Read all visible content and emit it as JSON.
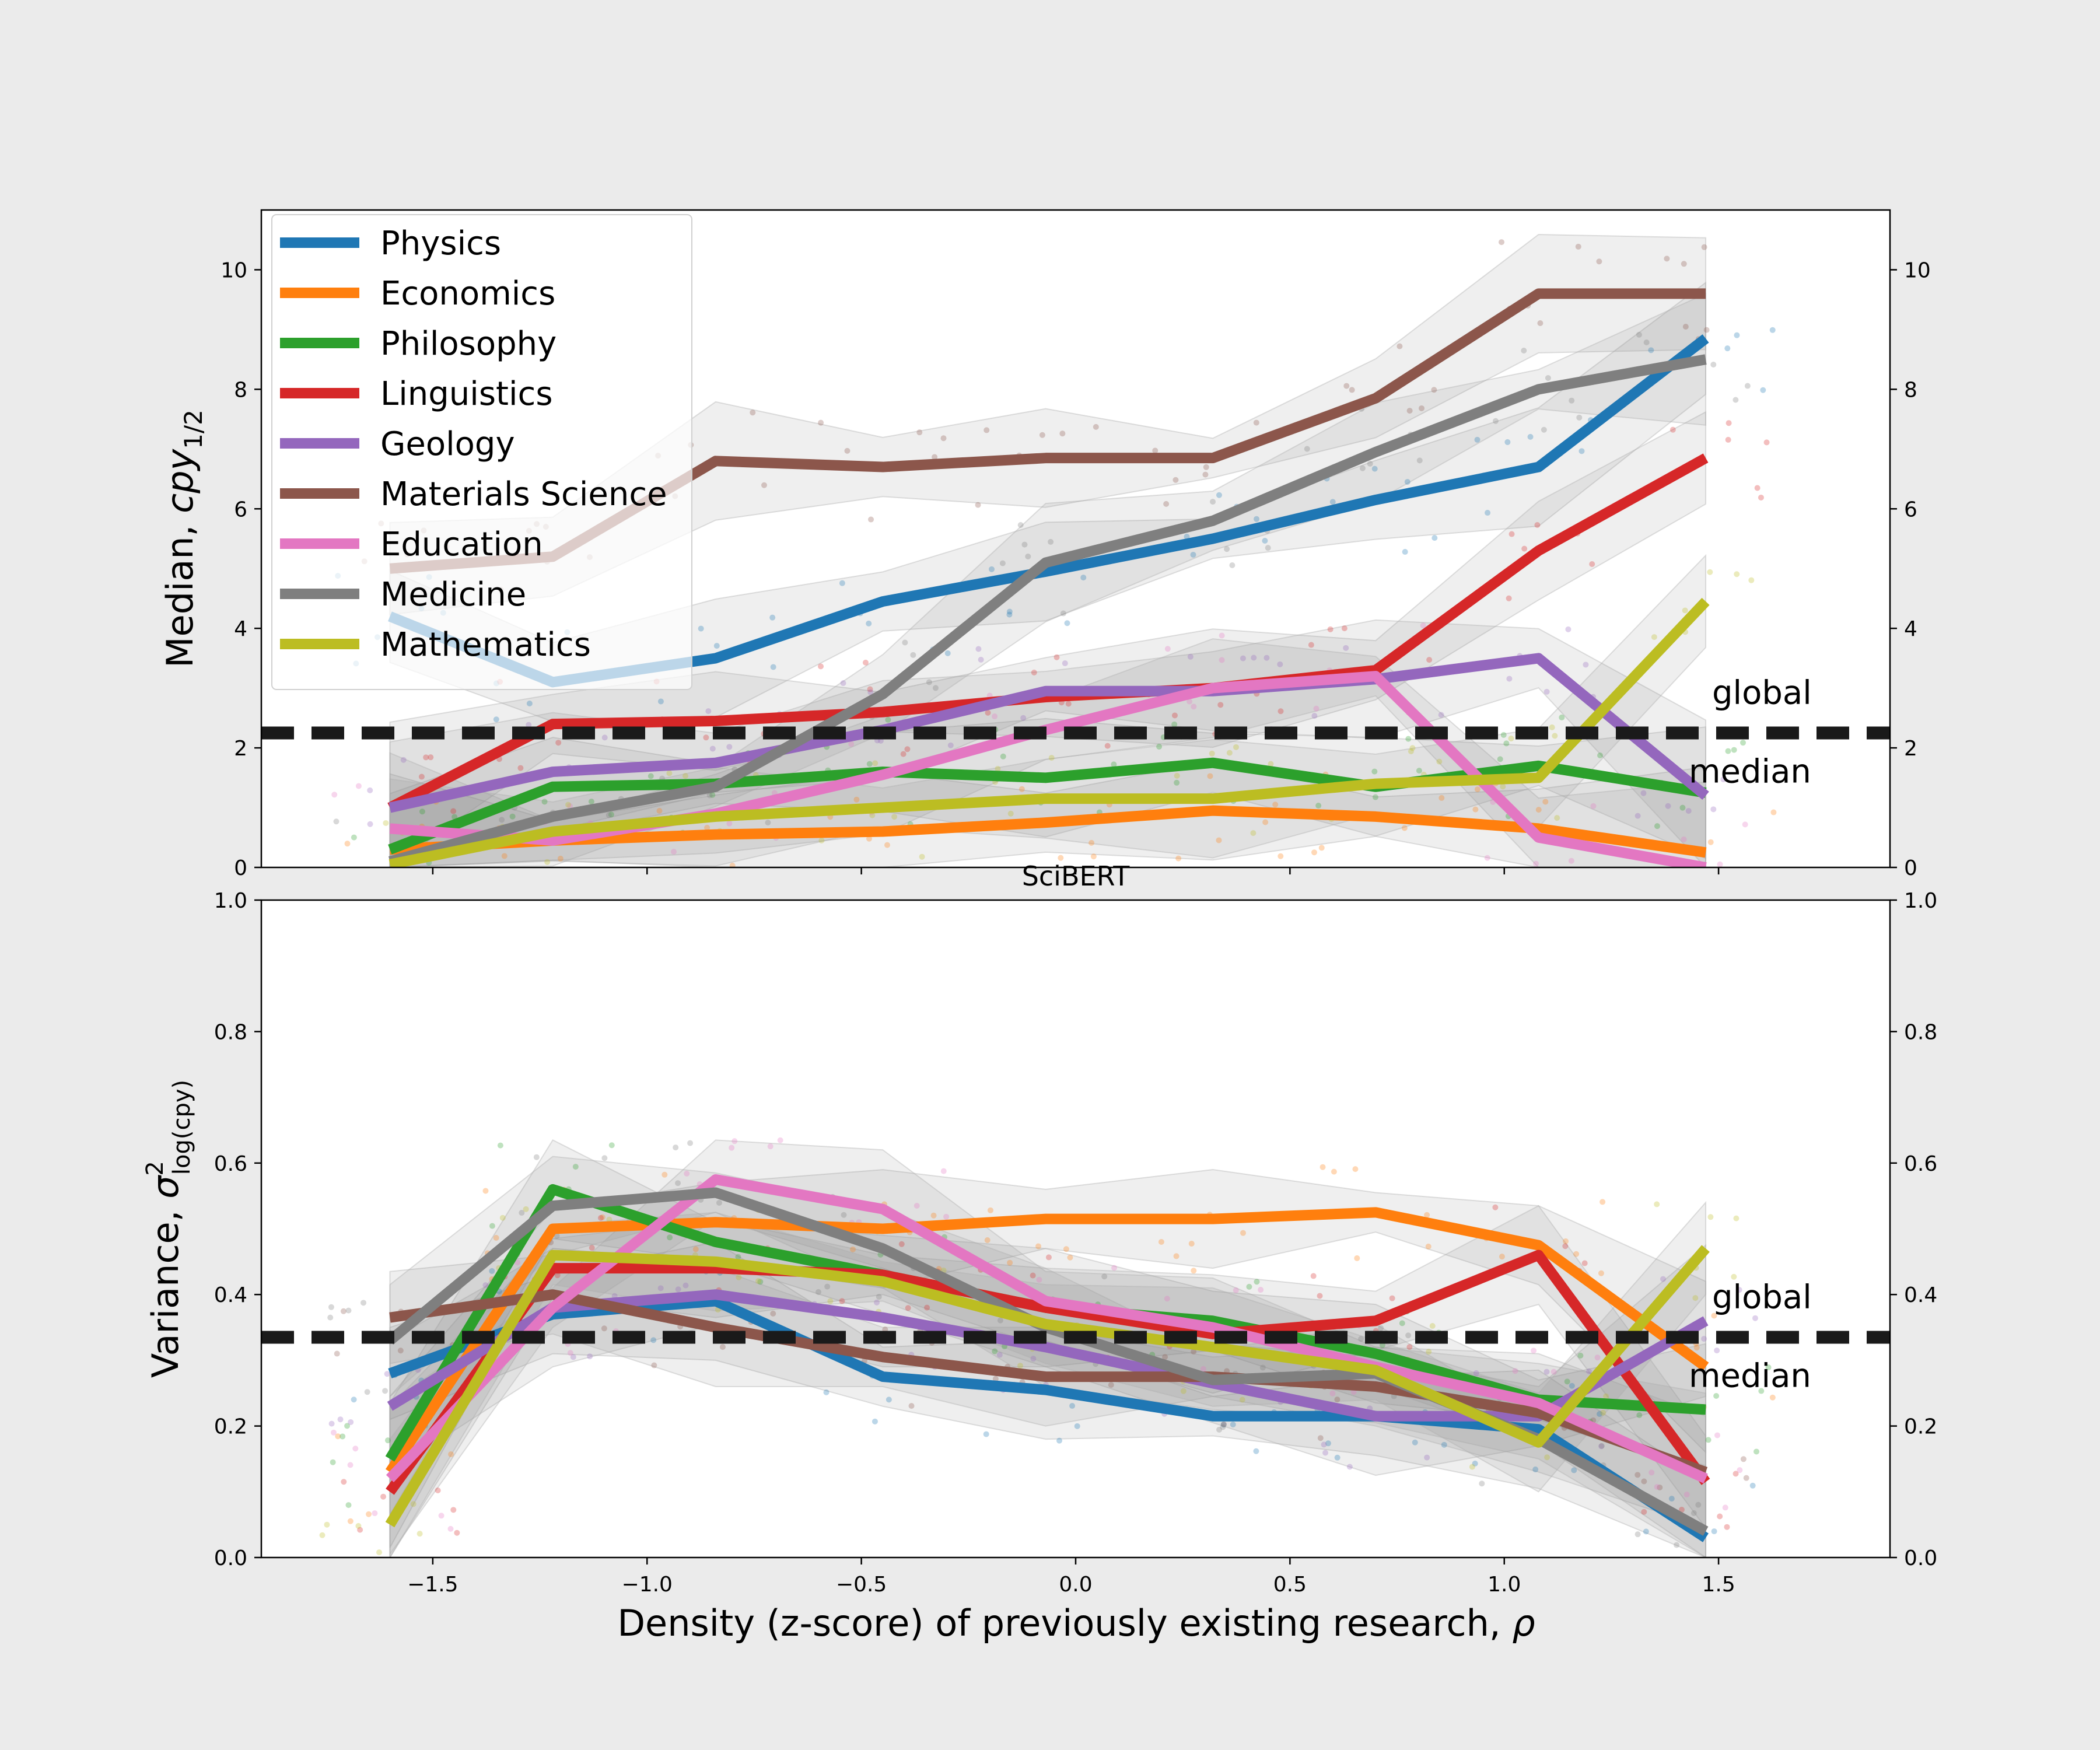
{
  "figure": {
    "xlabel_main": "Density (z-score) of previously existing research, ",
    "xlabel_symbol": "ρ"
  },
  "chart_data": [
    {
      "type": "line",
      "name": "top",
      "ylabel_prefix": "Median, ",
      "ylabel_symbol": "cpy",
      "ylabel_sub": "1/2",
      "xlim": [
        -1.9,
        1.9
      ],
      "ylim": [
        0,
        11
      ],
      "xticks": [
        -1.5,
        -1.0,
        -0.5,
        0.0,
        0.5,
        1.0,
        1.5
      ],
      "yticks": [
        0,
        2,
        4,
        6,
        8,
        10
      ],
      "ytick_labels": [
        "0",
        "2",
        "4",
        "6",
        "8",
        "10"
      ],
      "hline": {
        "y": 2.25,
        "label_top": "global",
        "label_bottom": "median"
      },
      "x": [
        -1.6,
        -1.22,
        -0.84,
        -0.45,
        -0.07,
        0.32,
        0.7,
        1.08,
        1.47
      ],
      "series": [
        {
          "name": "Physics",
          "color": "#1f77b4",
          "values": [
            4.2,
            3.1,
            3.5,
            4.45,
            4.95,
            5.5,
            6.15,
            6.7,
            8.85
          ]
        },
        {
          "name": "Economics",
          "color": "#ff7f0e",
          "values": [
            0.3,
            0.45,
            0.55,
            0.6,
            0.75,
            0.95,
            0.85,
            0.65,
            0.25
          ]
        },
        {
          "name": "Philosophy",
          "color": "#2ca02c",
          "values": [
            0.3,
            1.35,
            1.4,
            1.6,
            1.5,
            1.75,
            1.35,
            1.7,
            1.25
          ]
        },
        {
          "name": "Linguistics",
          "color": "#d62728",
          "values": [
            1.0,
            2.4,
            2.45,
            2.6,
            2.85,
            3.0,
            3.3,
            5.3,
            6.85
          ]
        },
        {
          "name": "Geology",
          "color": "#9467bd",
          "values": [
            1.0,
            1.6,
            1.75,
            2.3,
            2.95,
            2.95,
            3.15,
            3.5,
            1.2
          ]
        },
        {
          "name": "Materials Science",
          "color": "#8c564b",
          "values": [
            5.0,
            5.2,
            6.8,
            6.7,
            6.85,
            6.85,
            7.85,
            9.6,
            9.6
          ]
        },
        {
          "name": "Education",
          "color": "#e377c2",
          "values": [
            0.65,
            0.45,
            0.9,
            1.55,
            2.3,
            3.0,
            3.2,
            0.5,
            0.0
          ]
        },
        {
          "name": "Medicine",
          "color": "#7f7f7f",
          "values": [
            0.1,
            0.85,
            1.35,
            2.9,
            5.1,
            5.8,
            6.95,
            8.0,
            8.5
          ]
        },
        {
          "name": "Mathematics",
          "color": "#bcbd22",
          "values": [
            0.05,
            0.6,
            0.85,
            1.0,
            1.15,
            1.15,
            1.4,
            1.5,
            4.45
          ]
        }
      ]
    },
    {
      "type": "line",
      "name": "bottom",
      "title": "SciBERT",
      "ylabel_prefix": "Variance, ",
      "ylabel_symbol": "σ",
      "ylabel_sup": "2",
      "ylabel_sub": "log(cpy)",
      "xlim": [
        -1.9,
        1.9
      ],
      "ylim": [
        0,
        1.0
      ],
      "xticks": [
        -1.5,
        -1.0,
        -0.5,
        0.0,
        0.5,
        1.0,
        1.5
      ],
      "xtick_labels": [
        "−1.5",
        "−1.0",
        "−0.5",
        "0.0",
        "0.5",
        "1.0",
        "1.5"
      ],
      "yticks": [
        0.0,
        0.2,
        0.4,
        0.6,
        0.8,
        1.0
      ],
      "ytick_labels": [
        "0.0",
        "0.2",
        "0.4",
        "0.6",
        "0.8",
        "1.0"
      ],
      "hline": {
        "y": 0.335,
        "label_top": "global",
        "label_bottom": "median"
      },
      "x": [
        -1.6,
        -1.22,
        -0.84,
        -0.45,
        -0.07,
        0.32,
        0.7,
        1.08,
        1.47
      ],
      "series": [
        {
          "name": "Physics",
          "color": "#1f77b4",
          "values": [
            0.28,
            0.37,
            0.39,
            0.275,
            0.255,
            0.215,
            0.215,
            0.195,
            0.03
          ]
        },
        {
          "name": "Economics",
          "color": "#ff7f0e",
          "values": [
            0.13,
            0.5,
            0.51,
            0.5,
            0.515,
            0.515,
            0.525,
            0.475,
            0.29
          ]
        },
        {
          "name": "Philosophy",
          "color": "#2ca02c",
          "values": [
            0.15,
            0.56,
            0.48,
            0.43,
            0.38,
            0.36,
            0.31,
            0.24,
            0.225
          ]
        },
        {
          "name": "Linguistics",
          "color": "#d62728",
          "values": [
            0.1,
            0.44,
            0.44,
            0.43,
            0.38,
            0.34,
            0.36,
            0.46,
            0.115
          ]
        },
        {
          "name": "Geology",
          "color": "#9467bd",
          "values": [
            0.23,
            0.38,
            0.4,
            0.365,
            0.32,
            0.265,
            0.215,
            0.215,
            0.36
          ]
        },
        {
          "name": "Materials Science",
          "color": "#8c564b",
          "values": [
            0.365,
            0.4,
            0.35,
            0.305,
            0.275,
            0.275,
            0.26,
            0.22,
            0.13
          ]
        },
        {
          "name": "Education",
          "color": "#e377c2",
          "values": [
            0.12,
            0.38,
            0.575,
            0.53,
            0.39,
            0.35,
            0.29,
            0.235,
            0.12
          ]
        },
        {
          "name": "Medicine",
          "color": "#7f7f7f",
          "values": [
            0.33,
            0.535,
            0.555,
            0.47,
            0.35,
            0.27,
            0.28,
            0.18,
            0.04
          ]
        },
        {
          "name": "Mathematics",
          "color": "#bcbd22",
          "values": [
            0.05,
            0.46,
            0.45,
            0.42,
            0.355,
            0.32,
            0.285,
            0.175,
            0.47
          ]
        }
      ]
    }
  ]
}
